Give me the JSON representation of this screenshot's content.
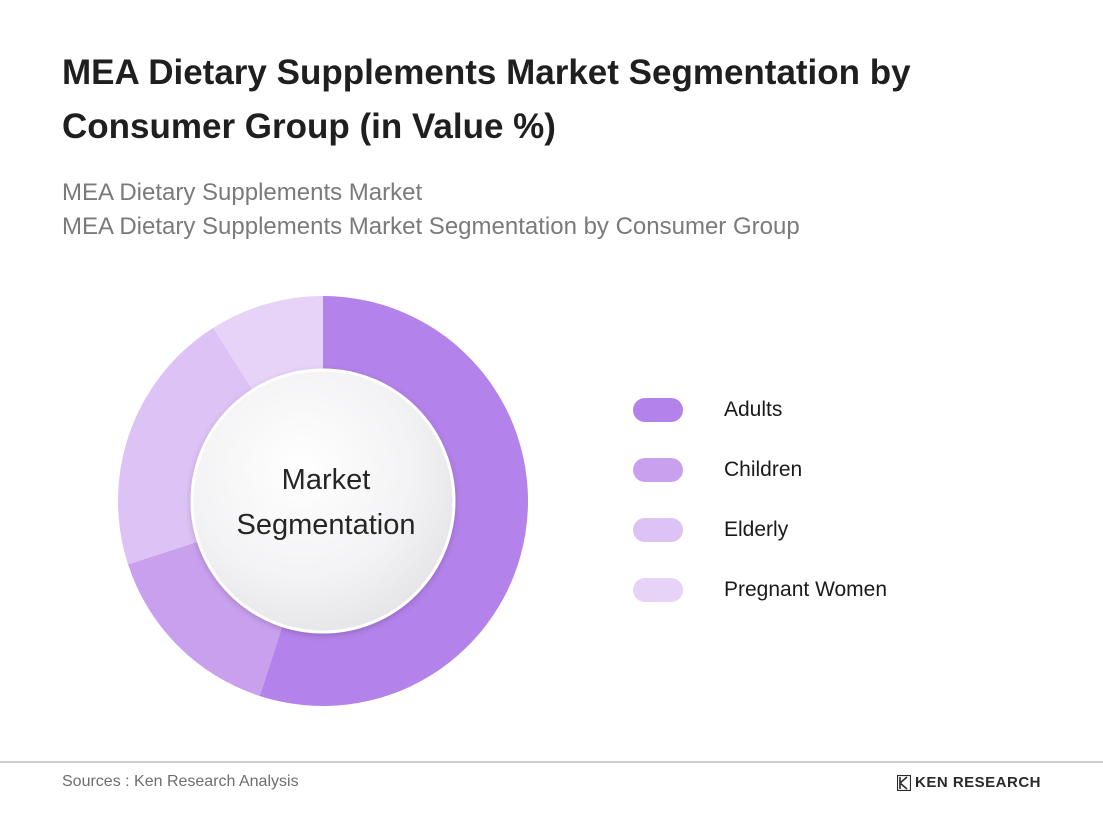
{
  "title": "MEA Dietary Supplements Market Segmentation by Consumer Group (in Value %)",
  "subtitle_lines": [
    "MEA Dietary Supplements Market",
    "MEA Dietary Supplements Market Segmentation by Consumer Group"
  ],
  "center_label": {
    "line1": "Market",
    "line2": "Segmentation"
  },
  "chart_data": {
    "type": "pie",
    "title": "MEA Dietary Supplements Market Segmentation by Consumer Group (in Value %)",
    "unit": "%",
    "categories": [
      "Adults",
      "Children",
      "Elderly",
      "Pregnant Women"
    ],
    "values": [
      55,
      15,
      21,
      9
    ],
    "colors": [
      "#b382ea",
      "#c8a0ee",
      "#dcc2f5",
      "#e6d3f7"
    ],
    "legend_position": "right",
    "donut": true
  },
  "footer": {
    "source": "Sources : Ken Research Analysis",
    "brand": "KEN RESEARCH"
  }
}
